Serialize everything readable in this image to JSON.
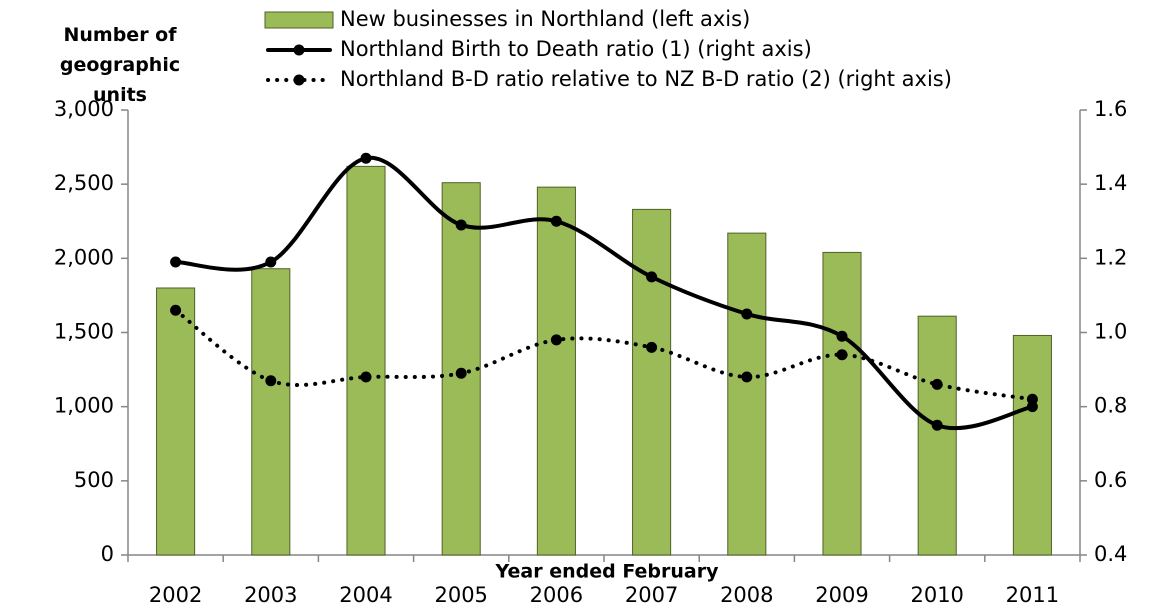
{
  "chart_data": {
    "type": "bar-line",
    "ylabel": "Number of geographic units",
    "xlabel": "Year ended February",
    "categories": [
      "2002",
      "2003",
      "2004",
      "2005",
      "2006",
      "2007",
      "2008",
      "2009",
      "2010",
      "2011"
    ],
    "series": [
      {
        "name": "New businesses in Northland (left axis)",
        "type": "bar",
        "color": "#9bbb59",
        "values": [
          1800,
          1930,
          2620,
          2510,
          2480,
          2330,
          2170,
          2040,
          1610,
          1480
        ]
      },
      {
        "name": "Northland Birth to Death ratio (1) (right axis)",
        "type": "line",
        "axis": "y2",
        "color": "#000000",
        "style": "solid",
        "values": [
          1.19,
          1.19,
          1.47,
          1.29,
          1.3,
          1.15,
          1.05,
          0.99,
          0.75,
          0.8
        ]
      },
      {
        "name": "Northland B-D ratio relative to NZ B-D ratio (2) (right axis)",
        "type": "line",
        "axis": "y2",
        "color": "#000000",
        "style": "dotted",
        "values": [
          1.06,
          0.87,
          0.88,
          0.89,
          0.98,
          0.96,
          0.88,
          0.94,
          0.86,
          0.82
        ]
      }
    ],
    "ylim": [
      0,
      3000
    ],
    "yticks": [
      0,
      500,
      {
        "value": 1000,
        "label": "1,000"
      },
      {
        "value": 1500,
        "label": "1,500"
      },
      {
        "value": 2000,
        "label": "2,000"
      },
      {
        "value": 2500,
        "label": "2,500"
      },
      {
        "value": 3000,
        "label": "3,000"
      }
    ],
    "y2lim": [
      0.4,
      1.6
    ],
    "y2ticks": [
      0.4,
      0.6,
      0.8,
      {
        "value": 1.0,
        "label": "1.0"
      },
      1.2,
      1.4,
      1.6
    ]
  }
}
